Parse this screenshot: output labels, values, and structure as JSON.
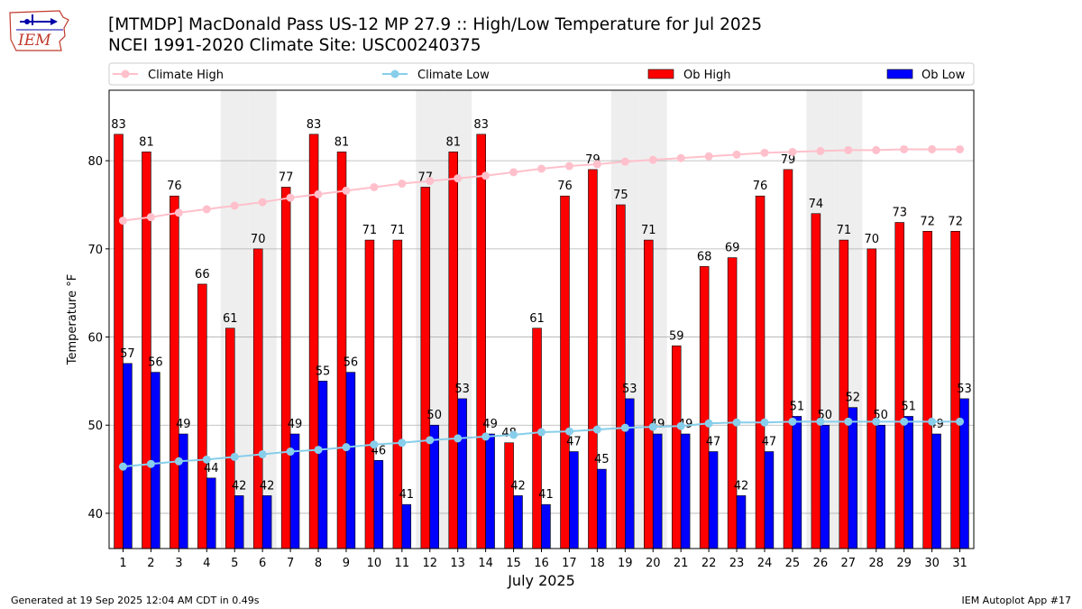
{
  "header": {
    "title": "[MTMDP] MacDonald Pass US-12 MP 27.9  :: High/Low Temperature for Jul 2025",
    "subtitle": "NCEI 1991-2020 Climate Site: USC00240375",
    "logo_text": "IEM"
  },
  "footer": {
    "left": "Generated at 19 Sep 2025 12:04 AM CDT in 0.49s",
    "right": "IEM Autoplot App #17"
  },
  "colors": {
    "ob_high": "#ff0000",
    "ob_low": "#0000ff",
    "climate_high": "#ffc0cb",
    "climate_low": "#87ceeb",
    "weekend_shade": "#eeeeee",
    "grid": "#b0b0b0"
  },
  "chart_data": {
    "type": "bar",
    "title": "[MTMDP] MacDonald Pass US-12 MP 27.9  :: High/Low Temperature for Jul 2025",
    "xlabel": "July 2025",
    "ylabel": "Temperature °F",
    "ylim": [
      36,
      88
    ],
    "yticks": [
      40,
      50,
      60,
      70,
      80
    ],
    "grid": true,
    "legend_position": "top",
    "categories": [
      "1",
      "2",
      "3",
      "4",
      "5",
      "6",
      "7",
      "8",
      "9",
      "10",
      "11",
      "12",
      "13",
      "14",
      "15",
      "16",
      "17",
      "18",
      "19",
      "20",
      "21",
      "22",
      "23",
      "24",
      "25",
      "26",
      "27",
      "28",
      "29",
      "30",
      "31"
    ],
    "weekend_days": [
      5,
      6,
      12,
      13,
      19,
      20,
      26,
      27
    ],
    "series": [
      {
        "name": "Ob High",
        "kind": "bar",
        "color": "#ff0000",
        "values": [
          83,
          81,
          76,
          66,
          61,
          70,
          77,
          83,
          81,
          71,
          71,
          77,
          81,
          83,
          48,
          61,
          76,
          79,
          75,
          71,
          59,
          68,
          69,
          76,
          79,
          74,
          71,
          70,
          73,
          72,
          72
        ]
      },
      {
        "name": "Ob Low",
        "kind": "bar",
        "color": "#0000ff",
        "values": [
          57,
          56,
          49,
          44,
          42,
          42,
          49,
          55,
          56,
          46,
          41,
          50,
          53,
          49,
          42,
          41,
          47,
          45,
          53,
          49,
          49,
          47,
          42,
          47,
          51,
          50,
          52,
          50,
          51,
          49,
          53
        ]
      },
      {
        "name": "Climate High",
        "kind": "line",
        "color": "#ffc0cb",
        "values": [
          73.2,
          73.6,
          74.1,
          74.5,
          74.9,
          75.3,
          75.8,
          76.2,
          76.6,
          77.0,
          77.4,
          77.7,
          78.0,
          78.3,
          78.7,
          79.1,
          79.4,
          79.6,
          79.9,
          80.1,
          80.3,
          80.5,
          80.7,
          80.9,
          81.0,
          81.1,
          81.2,
          81.2,
          81.3,
          81.3,
          81.3
        ]
      },
      {
        "name": "Climate Low",
        "kind": "line",
        "color": "#87ceeb",
        "values": [
          45.3,
          45.6,
          45.9,
          46.1,
          46.4,
          46.7,
          47.0,
          47.2,
          47.5,
          47.8,
          48.0,
          48.3,
          48.5,
          48.7,
          48.9,
          49.2,
          49.3,
          49.5,
          49.7,
          49.8,
          49.9,
          50.2,
          50.3,
          50.3,
          50.4,
          50.4,
          50.4,
          50.4,
          50.4,
          50.4,
          50.4
        ]
      }
    ]
  }
}
